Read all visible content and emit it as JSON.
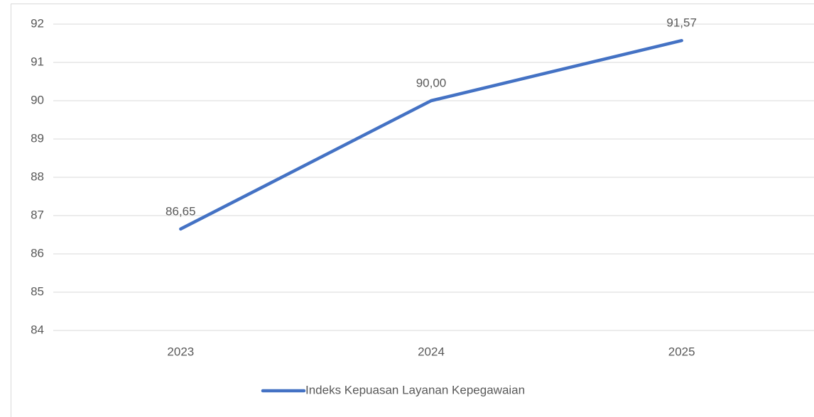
{
  "chart_data": {
    "type": "line",
    "categories": [
      "2023",
      "2024",
      "2025"
    ],
    "series": [
      {
        "name": "Indeks Kepuasan Layanan Kepegawaian",
        "color": "#4472c4",
        "values": [
          86.65,
          90.0,
          91.57
        ],
        "value_labels": [
          "86,65",
          "90,00",
          "91,57"
        ]
      }
    ],
    "ylim": [
      84,
      92
    ],
    "yticks": [
      84,
      85,
      86,
      87,
      88,
      89,
      90,
      91,
      92
    ],
    "grid": true,
    "legend": "bottom"
  }
}
